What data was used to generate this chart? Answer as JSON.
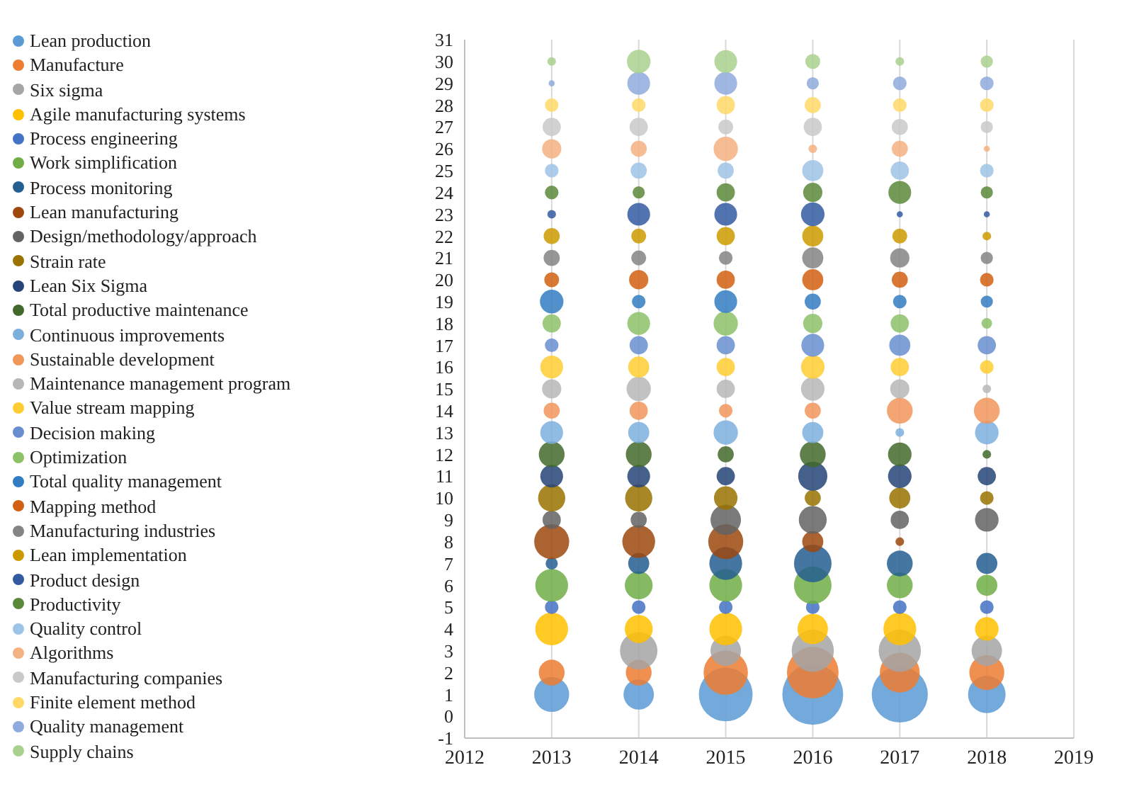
{
  "chart_data": {
    "type": "bubble",
    "x": [
      2013,
      2014,
      2015,
      2016,
      2017,
      2018
    ],
    "xlim": [
      2012,
      2019
    ],
    "xticks": [
      2012,
      2013,
      2014,
      2015,
      2016,
      2017,
      2018,
      2019
    ],
    "ylim": [
      -1,
      31
    ],
    "yticks": [
      -1,
      0,
      1,
      2,
      3,
      4,
      5,
      6,
      7,
      8,
      9,
      10,
      11,
      12,
      13,
      14,
      15,
      16,
      17,
      18,
      19,
      20,
      21,
      22,
      23,
      24,
      25,
      26,
      27,
      28,
      29,
      30,
      31
    ],
    "grid": "x",
    "legend": "left",
    "series": [
      {
        "name": "Lean production",
        "color": "#5b9bd5",
        "values": [
          1,
          1,
          1,
          1,
          1,
          1
        ],
        "sizes": [
          0.33,
          0.25,
          0.78,
          1,
          0.85,
          0.38
        ]
      },
      {
        "name": "Manufacture",
        "color": "#ed7d31",
        "values": [
          2,
          2,
          2,
          2,
          2,
          2
        ],
        "sizes": [
          0.18,
          0.18,
          0.53,
          0.72,
          0.43,
          0.33
        ]
      },
      {
        "name": "Six sigma",
        "color": "#a5a5a5",
        "values": [
          null,
          3,
          3,
          3,
          3,
          3
        ],
        "sizes": [
          null,
          0.38,
          0.25,
          0.48,
          0.48,
          0.25
        ]
      },
      {
        "name": "Agile manufacturing systems",
        "color": "#ffc000",
        "values": [
          4,
          4,
          4,
          4,
          4,
          4
        ],
        "sizes": [
          0.29,
          0.21,
          0.29,
          0.25,
          0.29,
          0.15
        ]
      },
      {
        "name": "Process engineering",
        "color": "#4472c4",
        "values": [
          5,
          5,
          5,
          5,
          5,
          5
        ],
        "sizes": [
          0.05,
          0.05,
          0.05,
          0.05,
          0.05,
          0.05
        ]
      },
      {
        "name": "Work simplification",
        "color": "#70ad47",
        "values": [
          6,
          6,
          6,
          6,
          6,
          6
        ],
        "sizes": [
          0.29,
          0.21,
          0.29,
          0.38,
          0.18,
          0.12
        ]
      },
      {
        "name": "Process monitoring",
        "color": "#255e91",
        "values": [
          7,
          7,
          7,
          7,
          7,
          7
        ],
        "sizes": [
          0.04,
          0.12,
          0.29,
          0.38,
          0.18,
          0.12
        ]
      },
      {
        "name": "Lean manufacturing",
        "color": "#9e480e",
        "values": [
          8,
          8,
          8,
          8,
          8,
          null
        ],
        "sizes": [
          0.33,
          0.29,
          0.33,
          0.12,
          0.02,
          null
        ]
      },
      {
        "name": "Design/methodology/approach",
        "color": "#636363",
        "values": [
          9,
          9,
          9,
          9,
          9,
          9
        ],
        "sizes": [
          0.09,
          0.07,
          0.25,
          0.21,
          0.09,
          0.15
        ]
      },
      {
        "name": "Strain rate",
        "color": "#997300",
        "values": [
          10,
          10,
          10,
          10,
          10,
          10
        ],
        "sizes": [
          0.2,
          0.2,
          0.15,
          0.07,
          0.12,
          0.05
        ]
      },
      {
        "name": "Lean Six Sigma",
        "color": "#264478",
        "values": [
          11,
          11,
          11,
          11,
          11,
          11
        ],
        "sizes": [
          0.14,
          0.14,
          0.09,
          0.23,
          0.15,
          0.09
        ]
      },
      {
        "name": "Total productive maintenance",
        "color": "#43682b",
        "values": [
          12,
          12,
          12,
          12,
          12,
          12
        ],
        "sizes": [
          0.18,
          0.18,
          0.07,
          0.18,
          0.15,
          0.02
        ]
      },
      {
        "name": "Continuous improvements",
        "color": "#7cafdd",
        "values": [
          13,
          13,
          13,
          13,
          13,
          13
        ],
        "sizes": [
          0.14,
          0.12,
          0.16,
          0.12,
          0.02,
          0.15
        ]
      },
      {
        "name": "Sustainable development",
        "color": "#f1975a",
        "values": [
          14,
          14,
          14,
          14,
          14,
          14
        ],
        "sizes": [
          0.07,
          0.09,
          0.05,
          0.07,
          0.18,
          0.18
        ]
      },
      {
        "name": "Maintenance management program",
        "color": "#b7b7b7",
        "values": [
          15,
          15,
          15,
          15,
          15,
          15
        ],
        "sizes": [
          0.1,
          0.16,
          0.09,
          0.15,
          0.1,
          0.02
        ]
      },
      {
        "name": "Value stream mapping",
        "color": "#ffcd33",
        "values": [
          16,
          16,
          16,
          16,
          16,
          16
        ],
        "sizes": [
          0.14,
          0.12,
          0.09,
          0.15,
          0.09,
          0.05
        ]
      },
      {
        "name": "Decision making",
        "color": "#698ed0",
        "values": [
          17,
          17,
          17,
          17,
          17,
          17
        ],
        "sizes": [
          0.05,
          0.09,
          0.09,
          0.14,
          0.12,
          0.09
        ]
      },
      {
        "name": "Optimization",
        "color": "#8cc168",
        "values": [
          18,
          18,
          18,
          18,
          18,
          18
        ],
        "sizes": [
          0.09,
          0.14,
          0.16,
          0.1,
          0.09,
          0.03
        ]
      },
      {
        "name": "Total quality management",
        "color": "#327dc2",
        "values": [
          19,
          19,
          19,
          19,
          19,
          19
        ],
        "sizes": [
          0.15,
          0.05,
          0.14,
          0.07,
          0.05,
          0.04
        ]
      },
      {
        "name": "Mapping method",
        "color": "#d26012",
        "values": [
          20,
          20,
          20,
          20,
          20,
          20
        ],
        "sizes": [
          0.06,
          0.1,
          0.09,
          0.12,
          0.07,
          0.05
        ]
      },
      {
        "name": "Manufacturing industries",
        "color": "#848484",
        "values": [
          21,
          21,
          21,
          21,
          21,
          21
        ],
        "sizes": [
          0.07,
          0.06,
          0.05,
          0.12,
          0.1,
          0.04
        ]
      },
      {
        "name": "Lean implementation",
        "color": "#cc9a00",
        "values": [
          22,
          22,
          22,
          22,
          22,
          22
        ],
        "sizes": [
          0.07,
          0.06,
          0.09,
          0.12,
          0.06,
          0.02
        ]
      },
      {
        "name": "Product design",
        "color": "#335aa1",
        "values": [
          23,
          23,
          23,
          23,
          23,
          23
        ],
        "sizes": [
          0.02,
          0.14,
          0.14,
          0.15,
          0.01,
          0.01
        ]
      },
      {
        "name": "Productivity",
        "color": "#5a8a39",
        "values": [
          24,
          24,
          24,
          24,
          24,
          24
        ],
        "sizes": [
          0.05,
          0.04,
          0.09,
          0.1,
          0.14,
          0.04
        ]
      },
      {
        "name": "Quality control",
        "color": "#9dc3e6",
        "values": [
          25,
          25,
          25,
          25,
          25,
          25
        ],
        "sizes": [
          0.05,
          0.07,
          0.07,
          0.12,
          0.09,
          0.05
        ]
      },
      {
        "name": "Algorithms",
        "color": "#f4b183",
        "values": [
          26,
          26,
          26,
          26,
          26,
          26
        ],
        "sizes": [
          0.1,
          0.07,
          0.16,
          0.02,
          0.07,
          0.01
        ]
      },
      {
        "name": "Manufacturing companies",
        "color": "#c9c9c9",
        "values": [
          27,
          27,
          27,
          27,
          27,
          27
        ],
        "sizes": [
          0.09,
          0.09,
          0.06,
          0.09,
          0.07,
          0.04
        ]
      },
      {
        "name": "Finite element method",
        "color": "#ffd966",
        "values": [
          28,
          28,
          28,
          28,
          28,
          28
        ],
        "sizes": [
          0.05,
          0.05,
          0.09,
          0.07,
          0.05,
          0.05
        ]
      },
      {
        "name": "Quality management",
        "color": "#8faadc",
        "values": [
          29,
          29,
          29,
          29,
          29,
          29
        ],
        "sizes": [
          0.01,
          0.14,
          0.14,
          0.04,
          0.05,
          0.05
        ]
      },
      {
        "name": "Supply chains",
        "color": "#a9d18e",
        "values": [
          30,
          30,
          30,
          30,
          30,
          30
        ],
        "sizes": [
          0.02,
          0.15,
          0.14,
          0.06,
          0.02,
          0.04
        ]
      }
    ]
  }
}
